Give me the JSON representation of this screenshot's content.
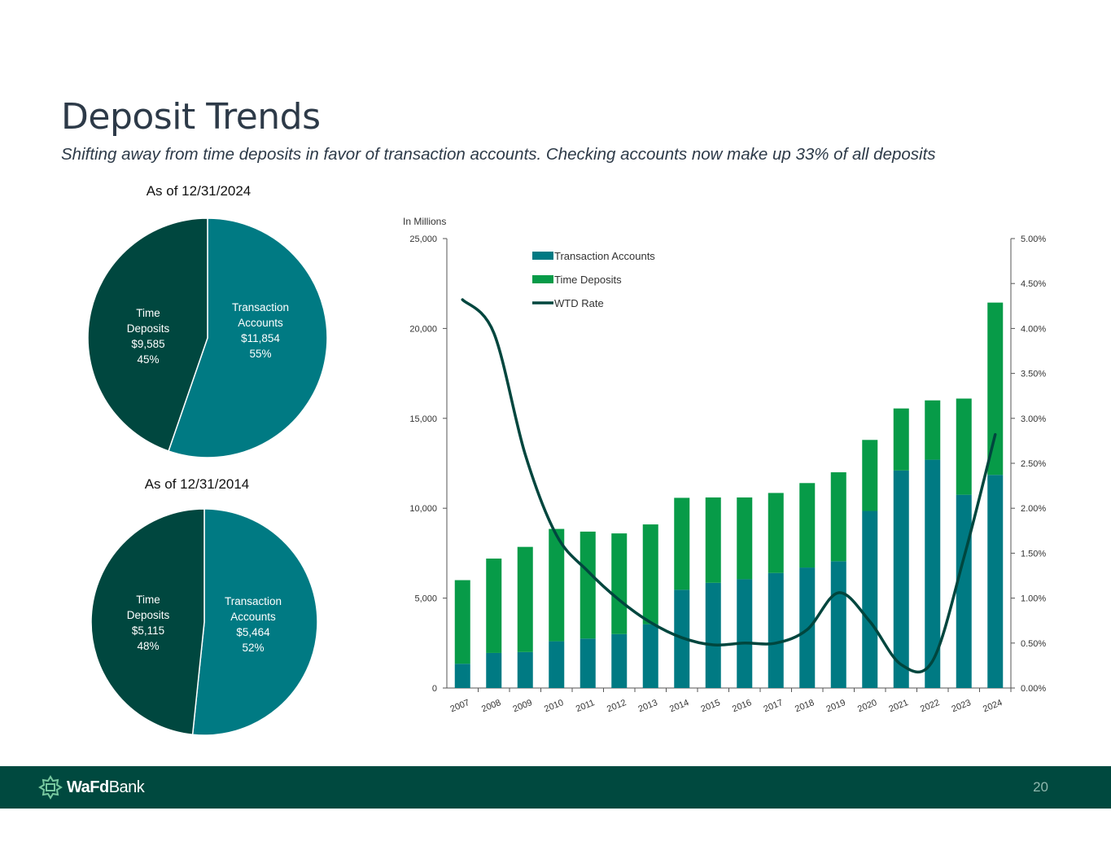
{
  "slide": {
    "title": "Deposit Trends",
    "subtitle": "Shifting away from time deposits in favor of transaction accounts.  Checking accounts now make up 33% of all deposits",
    "page_number": "20",
    "brand": {
      "bold": "WaFd",
      "regular": "Bank"
    }
  },
  "colors": {
    "transaction": "#007a83",
    "time": "#079b48",
    "time_pie": "#00473f",
    "rate": "#00463e",
    "footer": "#00493f"
  },
  "chart_data": [
    {
      "type": "pie",
      "title": "As of 12/31/2024",
      "slices": [
        {
          "label": [
            "Transaction",
            "Accounts",
            "$11,854",
            "55%"
          ],
          "value": 11854,
          "percent": 55,
          "color": "#007a83"
        },
        {
          "label": [
            "Time",
            "Deposits",
            "$9,585",
            "45%"
          ],
          "value": 9585,
          "percent": 45,
          "color": "#00473f"
        }
      ]
    },
    {
      "type": "pie",
      "title": "As of 12/31/2014",
      "slices": [
        {
          "label": [
            "Transaction",
            "Accounts",
            "$5,464",
            "52%"
          ],
          "value": 5464,
          "percent": 52,
          "color": "#007a83"
        },
        {
          "label": [
            "Time",
            "Deposits",
            "$5,115",
            "48%"
          ],
          "value": 5115,
          "percent": 48,
          "color": "#00473f"
        }
      ]
    },
    {
      "type": "bar",
      "stacked": true,
      "unit_label": "In Millions",
      "categories": [
        "2007",
        "2008",
        "2009",
        "2010",
        "2011",
        "2012",
        "2013",
        "2014",
        "2015",
        "2016",
        "2017",
        "2018",
        "2019",
        "2020",
        "2021",
        "2022",
        "2023",
        "2024"
      ],
      "series": [
        {
          "name": "Transaction Accounts",
          "type": "bar",
          "axis": "left",
          "values": [
            1350,
            1950,
            2000,
            2600,
            2750,
            3000,
            3550,
            5464,
            5850,
            6050,
            6400,
            6700,
            7050,
            9850,
            12100,
            12700,
            10750,
            11854
          ]
        },
        {
          "name": "Time Deposits",
          "type": "bar",
          "axis": "left",
          "values": [
            4650,
            5250,
            5850,
            6250,
            5950,
            5600,
            5550,
            5115,
            4750,
            4550,
            4450,
            4700,
            4950,
            3950,
            3450,
            3300,
            5350,
            9585
          ]
        },
        {
          "name": "WTD Rate",
          "type": "line",
          "axis": "right",
          "values": [
            4.32,
            3.95,
            2.6,
            1.7,
            1.3,
            0.98,
            0.73,
            0.56,
            0.48,
            0.5,
            0.5,
            0.65,
            1.06,
            0.74,
            0.26,
            0.3,
            1.45,
            2.82
          ]
        }
      ],
      "left_axis": {
        "min": 0,
        "max": 25000,
        "ticks": [
          "0",
          "5,000",
          "10,000",
          "15,000",
          "20,000",
          "25,000"
        ]
      },
      "right_axis": {
        "min": 0,
        "max": 5,
        "ticks": [
          "0.00%",
          "0.50%",
          "1.00%",
          "1.50%",
          "2.00%",
          "2.50%",
          "3.00%",
          "3.50%",
          "4.00%",
          "4.50%",
          "5.00%"
        ]
      },
      "legend": "top-left",
      "grid": false
    }
  ]
}
